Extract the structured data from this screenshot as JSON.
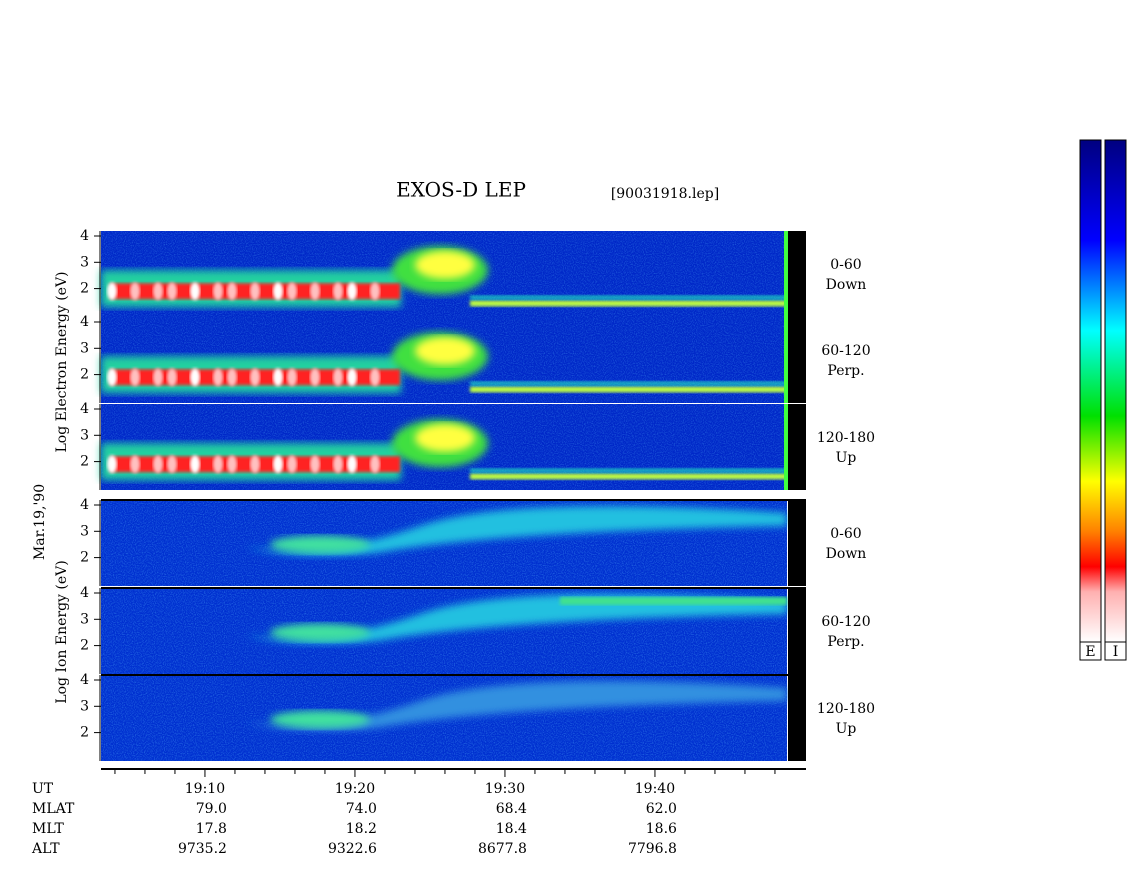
{
  "chart_data": {
    "type": "spectrogram",
    "title": "EXOS-D LEP",
    "subtitle": "[90031918.lep]",
    "ylabels": [
      "Log Electron Energy (eV)",
      "Mar.19,'90",
      "Log Ion Energy (eV)"
    ],
    "panels": [
      {
        "species": "electron",
        "lines": [
          "0-60",
          "Down"
        ],
        "ylim": [
          0.92,
          4.19
        ],
        "yticks": [
          2,
          3,
          4
        ]
      },
      {
        "species": "electron",
        "lines": [
          "60-120",
          "Perp."
        ],
        "ylim": [
          0.92,
          4.19
        ],
        "yticks": [
          2,
          3,
          4
        ]
      },
      {
        "species": "electron",
        "lines": [
          "120-180",
          "Up"
        ],
        "ylim": [
          0.92,
          4.19
        ],
        "yticks": [
          2,
          3,
          4
        ]
      },
      {
        "species": "ion",
        "lines": [
          "0-60",
          "Down"
        ],
        "ylim": [
          0.92,
          4.19
        ],
        "yticks": [
          2,
          3,
          4
        ]
      },
      {
        "species": "ion",
        "lines": [
          "60-120",
          "Perp."
        ],
        "ylim": [
          0.92,
          4.19
        ],
        "yticks": [
          2,
          3,
          4
        ]
      },
      {
        "species": "ion",
        "lines": [
          "120-180",
          "Up"
        ],
        "ylim": [
          0.92,
          4.19
        ],
        "yticks": [
          2,
          3,
          4
        ]
      }
    ],
    "xlabel": "UT",
    "xlim": [
      1143.07,
      1190.07
    ],
    "xticks": [
      {
        "value": 1150,
        "label": "19:10"
      },
      {
        "value": 1160,
        "label": "19:20"
      },
      {
        "value": 1170,
        "label": "19:30"
      },
      {
        "value": 1180,
        "label": "19:40"
      }
    ],
    "xminor_ticks": [
      1144,
      1146,
      1148,
      1152,
      1154,
      1156,
      1158,
      1162,
      1164,
      1166,
      1168,
      1172,
      1174,
      1176,
      1178,
      1182,
      1184,
      1186,
      1188
    ],
    "ephemeris": [
      {
        "name": "MLAT",
        "values": [
          "79.0",
          "74.0",
          "68.4",
          "62.0"
        ]
      },
      {
        "name": "MLT",
        "values": [
          "17.8",
          "18.2",
          "18.4",
          "18.6"
        ]
      },
      {
        "name": "ALT",
        "values": [
          "9735.2",
          "9322.6",
          "8677.8",
          "7796.8"
        ]
      }
    ],
    "colorbars": [
      "E",
      "I"
    ]
  }
}
